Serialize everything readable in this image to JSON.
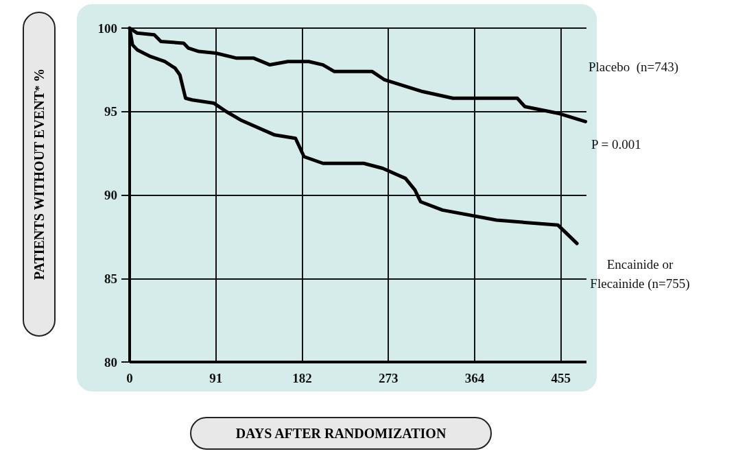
{
  "chart_data": {
    "type": "line",
    "xlabel": "DAYS AFTER RANDOMIZATION",
    "ylabel": "PATIENTS WITHOUT EVENT$^{*}$ %",
    "annotations": [
      "P = 0.001"
    ],
    "xlim": [
      0,
      482
    ],
    "xticks": [
      0,
      91,
      182,
      273,
      364,
      455
    ],
    "ylim": [
      80,
      100
    ],
    "yticks": [
      80,
      85,
      90,
      95,
      100
    ],
    "grid": true,
    "legend": false,
    "marker": "none",
    "line_style": "solid",
    "series": [
      {
        "name": "Placebo  (n=743)",
        "color": "#000000",
        "x": [
          0,
          8,
          26,
          33,
          57,
          62,
          73,
          91,
          113,
          131,
          148,
          167,
          189,
          204,
          216,
          256,
          269,
          309,
          341,
          385,
          409,
          417,
          452,
          481
        ],
        "values": [
          100,
          99.7,
          99.6,
          99.2,
          99.1,
          98.8,
          98.6,
          98.5,
          98.2,
          98.2,
          97.8,
          98.0,
          98.0,
          97.8,
          97.4,
          97.4,
          96.9,
          96.2,
          95.8,
          95.8,
          95.8,
          95.3,
          94.9,
          94.4
        ]
      },
      {
        "name": "Encainide or Flecainide (n=755)",
        "color": "#000000",
        "x": [
          0,
          3,
          8,
          22,
          37,
          48,
          53,
          59,
          66,
          89,
          102,
          117,
          153,
          175,
          184,
          204,
          247,
          267,
          291,
          301,
          307,
          330,
          387,
          452,
          472
        ],
        "values": [
          100,
          99.0,
          98.7,
          98.3,
          98.0,
          97.6,
          97.2,
          95.8,
          95.7,
          95.5,
          95.0,
          94.5,
          93.6,
          93.4,
          92.3,
          91.9,
          91.9,
          91.6,
          91.0,
          90.3,
          89.6,
          89.1,
          88.5,
          88.2,
          87.1
        ]
      }
    ]
  }
}
